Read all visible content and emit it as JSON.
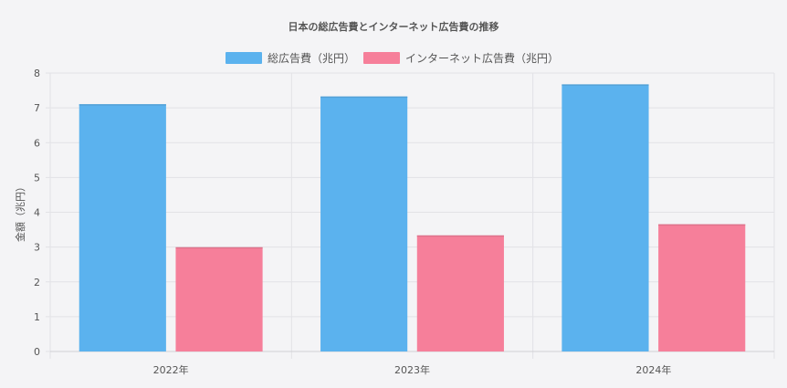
{
  "chart_data": {
    "type": "bar",
    "title": "日本の総広告費とインターネット広告費の推移",
    "categories": [
      "2022年",
      "2023年",
      "2024年"
    ],
    "series": [
      {
        "name": "総広告費（兆円）",
        "values": [
          7.1,
          7.32,
          7.67
        ],
        "color": "#5BB2EE"
      },
      {
        "name": "インターネット広告費（兆円）",
        "values": [
          2.99,
          3.33,
          3.65
        ],
        "color": "#F67F9A"
      }
    ],
    "xlabel": "",
    "ylabel": "金額（兆円）",
    "ylim": [
      0,
      8
    ],
    "yticks": [
      "0",
      "1",
      "2",
      "3",
      "4",
      "5",
      "6",
      "7",
      "8"
    ],
    "grid": true,
    "legend_position": "top"
  }
}
